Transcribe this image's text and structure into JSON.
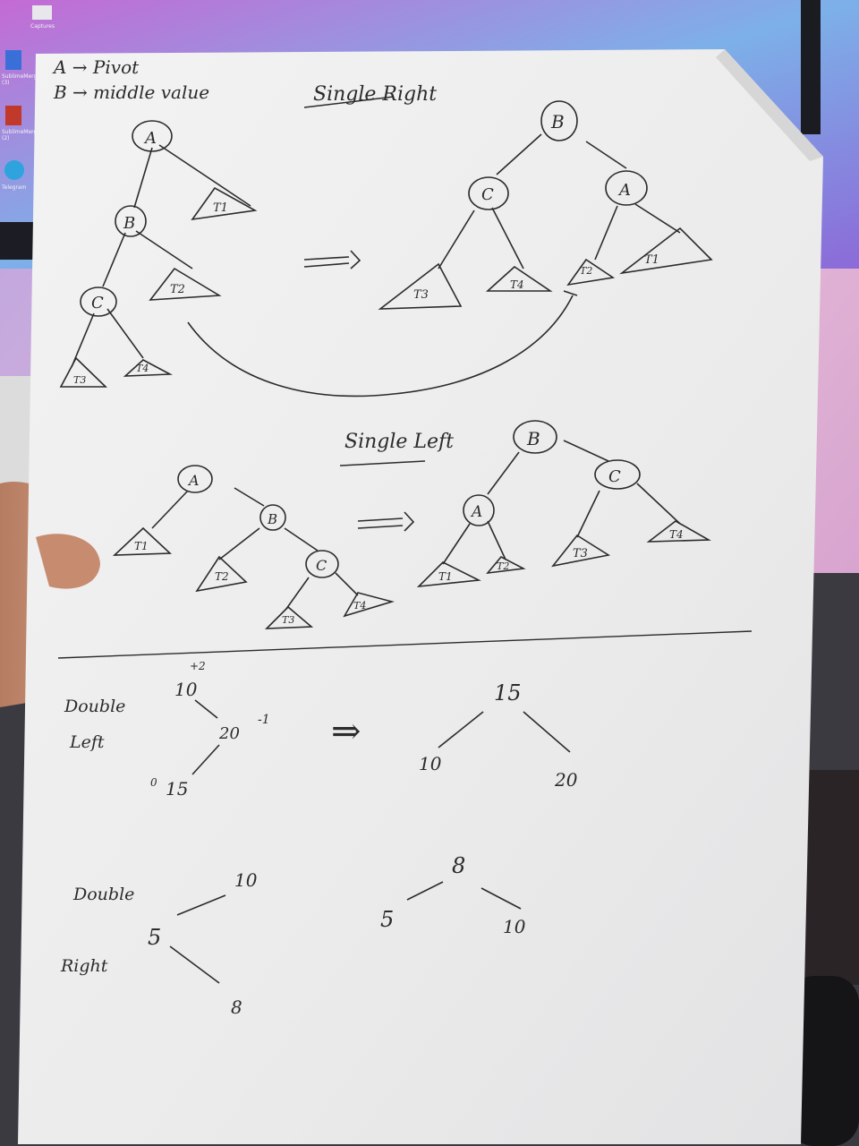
{
  "desktop": {
    "icons": [
      {
        "label": "Captures",
        "icon": "folder-icon"
      },
      {
        "label": "SublimeMerge (3)",
        "icon": "app-icon"
      },
      {
        "label": "SublimeMerge (2)",
        "icon": "app-icon"
      },
      {
        "label": "Telegram",
        "icon": "telegram-icon"
      }
    ]
  },
  "paper": {
    "legend": {
      "line_a": "A → Pivot",
      "line_b": "B → middle value"
    },
    "single_right": {
      "title": "Single Right",
      "before": {
        "nodes": [
          "A",
          "B",
          "C"
        ],
        "subtrees": [
          "T1",
          "T2",
          "T3",
          "T4"
        ]
      },
      "after": {
        "nodes": [
          "B",
          "C",
          "A"
        ],
        "subtrees": [
          "T3",
          "T4",
          "T2",
          "T1"
        ]
      }
    },
    "single_left": {
      "title": "Single Left",
      "before": {
        "nodes": [
          "A",
          "B",
          "C"
        ],
        "subtrees": [
          "T1",
          "T2",
          "T3",
          "T4"
        ]
      },
      "after": {
        "nodes": [
          "B",
          "A",
          "C"
        ],
        "subtrees": [
          "T1",
          "T2",
          "T3",
          "T4"
        ]
      }
    },
    "double_left": {
      "label_1": "Double",
      "label_2": "Left",
      "before": {
        "root": "10",
        "root_balance": "+2",
        "mid": "20",
        "mid_balance": "-1",
        "leaf": "15",
        "leaf_balance": "0"
      },
      "after": {
        "root": "15",
        "left": "10",
        "right": "20"
      }
    },
    "double_right": {
      "label_1": "Double",
      "label_2": "Right",
      "before": {
        "top": "10",
        "mid": "5",
        "leaf": "8"
      },
      "after": {
        "root": "8",
        "left": "5",
        "right": "10"
      }
    },
    "arrow": "⇒"
  },
  "colors": {
    "paper": "#eeeeee",
    "ink": "#2b2b2b",
    "wall": "#c9a4d6",
    "monitor": "#1b1b22"
  }
}
